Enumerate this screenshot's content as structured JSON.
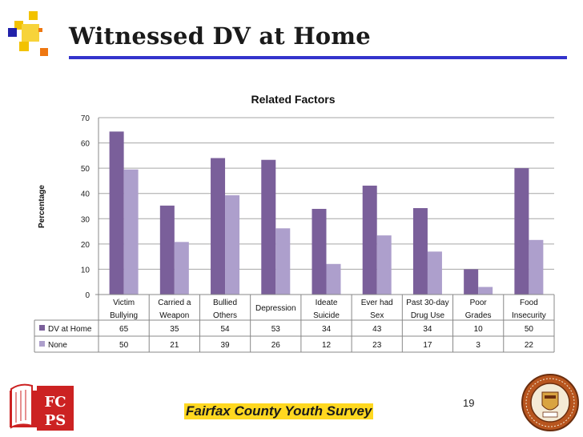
{
  "slide": {
    "title": "Witnessed DV at Home",
    "footer": "Fairfax County Youth Survey",
    "page_number": "19",
    "logo_text": "FCPS",
    "colors": {
      "title_rule": "#3333cc",
      "footer_highlight": "#ffd820"
    }
  },
  "chart_data": {
    "type": "bar",
    "title": "Related Factors",
    "ylabel": "Percentage",
    "xlabel": "",
    "ylim": [
      0,
      70
    ],
    "yticks": [
      0,
      10,
      20,
      30,
      40,
      50,
      60,
      70
    ],
    "grid": true,
    "legend": "data-table",
    "categories": [
      [
        "Victim",
        "Bullying"
      ],
      [
        "Carried a",
        "Weapon"
      ],
      [
        "Bullied",
        "Others"
      ],
      [
        "Depression"
      ],
      [
        "Ideate",
        "Suicide"
      ],
      [
        "Ever had",
        "Sex"
      ],
      [
        "Past 30-day",
        "Drug  Use"
      ],
      [
        "Poor",
        "Grades"
      ],
      [
        "Food",
        "Insecurity"
      ]
    ],
    "series": [
      {
        "name": "DV at Home",
        "color": "#7a5f9a",
        "values": [
          65,
          35,
          54,
          53,
          34,
          43,
          34,
          10,
          50
        ]
      },
      {
        "name": "None",
        "color": "#ad9fcc",
        "values": [
          50,
          21,
          39,
          26,
          12,
          23,
          17,
          3,
          22
        ]
      }
    ],
    "chart_values_drawn": [
      [
        64.5,
        35.2,
        54.0,
        53.3,
        33.9,
        43.1,
        34.2,
        10.0,
        50.0
      ],
      [
        49.5,
        20.8,
        39.3,
        26.2,
        12.1,
        23.4,
        17.0,
        3.0,
        21.6
      ]
    ]
  }
}
